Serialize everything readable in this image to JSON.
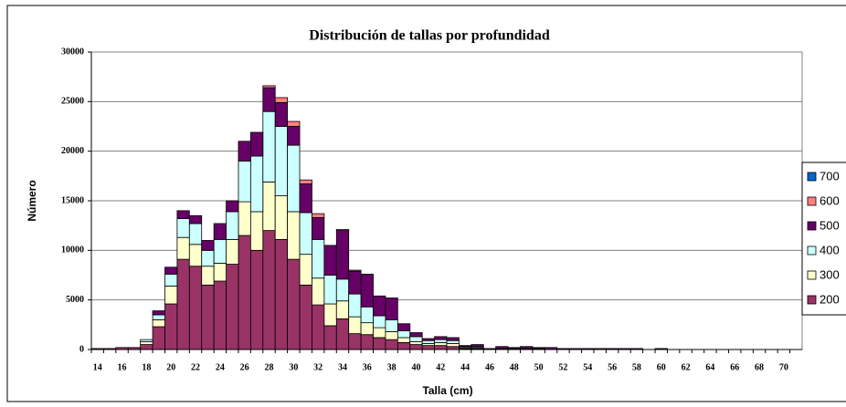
{
  "chart_data": {
    "type": "stacked_bar",
    "title": "Distribución de tallas por profundidad",
    "xlabel": "Talla (cm)",
    "ylabel": "Número",
    "categories": [
      "14",
      null,
      "16",
      null,
      "18",
      null,
      "20",
      null,
      "22",
      null,
      "24",
      null,
      "26",
      null,
      "28",
      null,
      "30",
      null,
      "32",
      null,
      "34",
      null,
      "36",
      null,
      "38",
      null,
      "40",
      null,
      "42",
      null,
      "44",
      null,
      "46",
      null,
      "48",
      null,
      "50",
      null,
      "52",
      null,
      "54",
      null,
      "56",
      null,
      "58",
      null,
      "60",
      null,
      "62",
      null,
      "64",
      null,
      "66",
      null,
      "68",
      null,
      "70",
      null
    ],
    "series": [
      {
        "name": "200",
        "color": "#993366",
        "values": [
          100,
          100,
          200,
          200,
          500,
          2300,
          4600,
          9100,
          8400,
          6500,
          6900,
          8600,
          11500,
          10000,
          12000,
          11100,
          9100,
          6500,
          4500,
          2400,
          3100,
          1600,
          1500,
          1200,
          1000,
          700,
          500,
          400,
          400,
          300,
          100,
          100,
          0,
          100,
          100,
          100,
          100,
          0,
          0,
          0,
          0,
          0,
          0,
          0,
          0,
          0,
          0,
          0,
          0,
          0,
          0,
          0,
          0,
          0,
          0,
          0,
          0,
          0
        ]
      },
      {
        "name": "300",
        "color": "#ffffcc",
        "values": [
          0,
          0,
          0,
          0,
          300,
          700,
          1800,
          2200,
          2200,
          1900,
          1800,
          2500,
          3400,
          3900,
          4900,
          4400,
          4800,
          3100,
          2700,
          2200,
          1800,
          1700,
          1200,
          1000,
          800,
          500,
          300,
          200,
          300,
          300,
          100,
          100,
          0,
          0,
          0,
          0,
          0,
          0,
          0,
          0,
          0,
          0,
          0,
          0,
          0,
          0,
          0,
          0,
          0,
          0,
          0,
          0,
          0,
          0,
          0,
          0,
          0,
          0
        ]
      },
      {
        "name": "400",
        "color": "#ccffff",
        "values": [
          0,
          0,
          0,
          0,
          200,
          500,
          1200,
          1900,
          2100,
          1600,
          2400,
          2800,
          4100,
          5600,
          7100,
          7000,
          6700,
          4200,
          3900,
          2900,
          2200,
          2300,
          1600,
          1200,
          1200,
          700,
          500,
          300,
          300,
          300,
          100,
          100,
          0,
          0,
          0,
          0,
          0,
          0,
          0,
          0,
          0,
          0,
          0,
          0,
          0,
          0,
          0,
          0,
          0,
          0,
          0,
          0,
          0,
          0,
          0,
          0,
          0,
          0
        ]
      },
      {
        "name": "500",
        "color": "#660066",
        "values": [
          0,
          0,
          0,
          0,
          0,
          400,
          700,
          800,
          800,
          1000,
          1600,
          1100,
          2000,
          2400,
          2400,
          2400,
          1900,
          2900,
          2200,
          3000,
          4900,
          2300,
          3300,
          2000,
          2200,
          700,
          400,
          200,
          300,
          300,
          100,
          200,
          100,
          200,
          100,
          200,
          100,
          200,
          100,
          100,
          100,
          100,
          100,
          100,
          100,
          0,
          100,
          0,
          0,
          0,
          0,
          0,
          0,
          0,
          0,
          0,
          0,
          0
        ]
      },
      {
        "name": "600",
        "color": "#ff8080",
        "values": [
          0,
          0,
          0,
          0,
          0,
          0,
          0,
          0,
          0,
          0,
          0,
          0,
          0,
          0,
          200,
          500,
          500,
          400,
          400,
          0,
          100,
          100,
          0,
          0,
          0,
          0,
          0,
          0,
          0,
          0,
          0,
          0,
          0,
          0,
          0,
          0,
          0,
          0,
          0,
          0,
          0,
          0,
          0,
          0,
          0,
          0,
          0,
          0,
          0,
          0,
          0,
          0,
          0,
          0,
          0,
          0,
          0,
          0
        ]
      },
      {
        "name": "700",
        "color": "#0066cc",
        "values": [
          0,
          0,
          0,
          0,
          0,
          0,
          0,
          0,
          0,
          0,
          0,
          0,
          0,
          0,
          0,
          0,
          0,
          0,
          0,
          0,
          0,
          0,
          0,
          0,
          0,
          0,
          0,
          0,
          0,
          0,
          0,
          0,
          0,
          0,
          0,
          0,
          0,
          0,
          0,
          0,
          0,
          0,
          0,
          0,
          0,
          0,
          0,
          0,
          0,
          0,
          0,
          0,
          0,
          0,
          0,
          0,
          0,
          0
        ]
      }
    ],
    "ylim": [
      0,
      30000
    ],
    "yticks": [
      0,
      5000,
      10000,
      15000,
      20000,
      25000,
      30000
    ],
    "grid": true,
    "legend": "right"
  }
}
